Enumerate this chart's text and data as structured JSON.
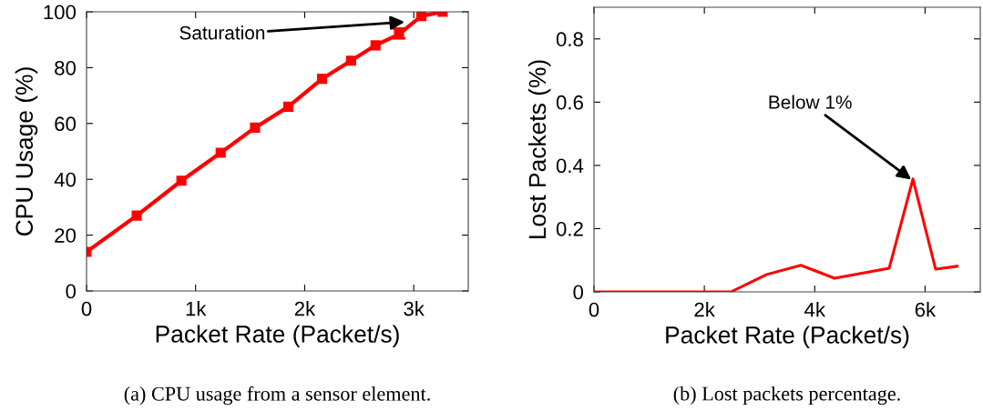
{
  "chart_data": [
    {
      "type": "line",
      "xlabel": "Packet Rate (Packet/s)",
      "ylabel": "CPU Usage (%)",
      "marker": "square",
      "line_style": "solid",
      "grid": false,
      "x": [
        0,
        460,
        870,
        1230,
        1545,
        1850,
        2160,
        2425,
        2650,
        2865,
        3070,
        3265
      ],
      "series": [
        {
          "color": "#ff0000",
          "values": [
            14,
            27,
            39.5,
            49.5,
            58.5,
            66,
            76,
            82.5,
            88,
            92,
            98.5,
            100
          ],
          "errors": [
            null,
            null,
            null,
            null,
            null,
            null,
            null,
            null,
            null,
            [
              90.5,
              94
            ],
            null,
            null
          ]
        }
      ],
      "xlim": [
        0,
        3500
      ],
      "xticks": [
        0,
        {
          "value": 1000,
          "label": "1k"
        },
        {
          "value": 2000,
          "label": "2k"
        },
        {
          "value": 3000,
          "label": "3k"
        }
      ],
      "ylim": [
        0,
        100
      ],
      "yticks": [
        0,
        20,
        40,
        60,
        80,
        100
      ],
      "annotations": [
        {
          "text": "Saturation",
          "x": 2917,
          "y": 96.4
        },
        "(a) CPU usage from a sensor element."
      ]
    },
    {
      "type": "line",
      "xlabel": "Packet Rate (Packet/s)",
      "ylabel": "Lost Packets (%)",
      "line_style": "solid",
      "grid": false,
      "x": [
        0,
        2480,
        3130,
        3750,
        4360,
        5350,
        5780,
        6190,
        6580
      ],
      "series": [
        {
          "color": "#ff0000",
          "values": [
            0,
            0,
            0.055,
            0.084,
            0.043,
            0.075,
            0.357,
            0.072,
            0.081
          ]
        }
      ],
      "xlim": [
        0,
        7000
      ],
      "xticks": [
        0,
        {
          "value": 2000,
          "label": "2k"
        },
        {
          "value": 4000,
          "label": "4k"
        },
        {
          "value": 6000,
          "label": "6k"
        }
      ],
      "ylim": [
        0,
        0.9
      ],
      "yticks": [
        0,
        0.2,
        0.4,
        0.6,
        0.8
      ],
      "annotations": [
        {
          "text": "Below 1%",
          "x": 5750,
          "y": 0.355
        },
        "(b) Lost packets percentage."
      ]
    }
  ]
}
